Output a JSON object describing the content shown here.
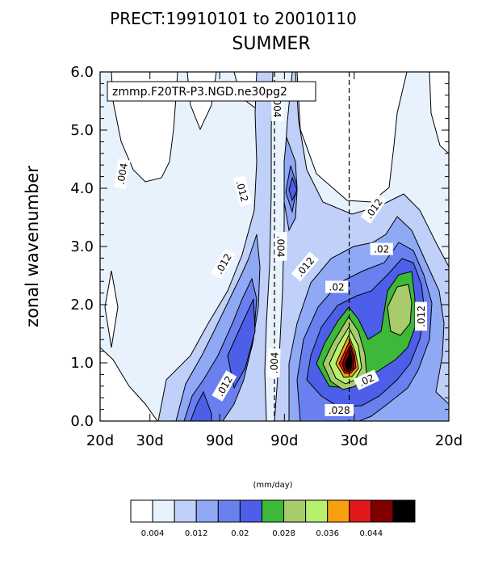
{
  "chart_data": {
    "type": "contour",
    "title": "PRECT:19910101 to 20010110",
    "subtitle": "SUMMER",
    "label_box": "zmmp.F20TR-P3.NGD.ne30pg2",
    "ylabel": "zonal wavenumber",
    "ylim": [
      0.0,
      6.0
    ],
    "yticks": [
      "0.0",
      "1.0",
      "2.0",
      "3.0",
      "4.0",
      "5.0",
      "6.0"
    ],
    "xticks": [
      "20d",
      "30d",
      "90d",
      "90d",
      "30d",
      "20d"
    ],
    "units": "(mm/day)",
    "colorbar": {
      "colors": [
        "#ffffff",
        "#e8f2fd",
        "#c0d0f8",
        "#8fa9f5",
        "#6b80ef",
        "#4d5ee8",
        "#3db838",
        "#a8cc6c",
        "#b6f06e",
        "#f8a010",
        "#e01818",
        "#800000",
        "#000000"
      ],
      "tick_labels": [
        "0.004",
        "0.012",
        "0.02",
        "0.028",
        "0.036",
        "0.044"
      ],
      "tick_index": [
        1,
        3,
        5,
        7,
        9,
        11
      ]
    },
    "dashed_lines_at_x": [
      3.5,
      5.0
    ],
    "contour_labels": [
      {
        "text": ".004",
        "x": 0.45,
        "y": 4.25,
        "rot": -80
      },
      {
        "text": ".004",
        "x": 3.55,
        "y": 5.4,
        "rot": 90
      },
      {
        "text": ".004",
        "x": 3.62,
        "y": 3.0,
        "rot": 90
      },
      {
        "text": ".004",
        "x": 3.5,
        "y": 1.0,
        "rot": -88
      },
      {
        "text": ".012",
        "x": 2.85,
        "y": 3.95,
        "rot": 75
      },
      {
        "text": ".012",
        "x": 2.48,
        "y": 2.7,
        "rot": -60
      },
      {
        "text": ".012",
        "x": 2.5,
        "y": 0.6,
        "rot": -60
      },
      {
        "text": ".012",
        "x": 4.12,
        "y": 2.65,
        "rot": -50
      },
      {
        "text": ".012",
        "x": 5.5,
        "y": 3.65,
        "rot": -55
      },
      {
        "text": ".012",
        "x": 6.45,
        "y": 1.8,
        "rot": -90
      },
      {
        "text": ".02",
        "x": 5.65,
        "y": 2.95,
        "rot": 0
      },
      {
        "text": ".02",
        "x": 4.75,
        "y": 2.3,
        "rot": 0
      },
      {
        "text": ".02",
        "x": 5.35,
        "y": 0.7,
        "rot": -25
      },
      {
        "text": ".028",
        "x": 4.8,
        "y": 0.18,
        "rot": 0
      }
    ]
  }
}
